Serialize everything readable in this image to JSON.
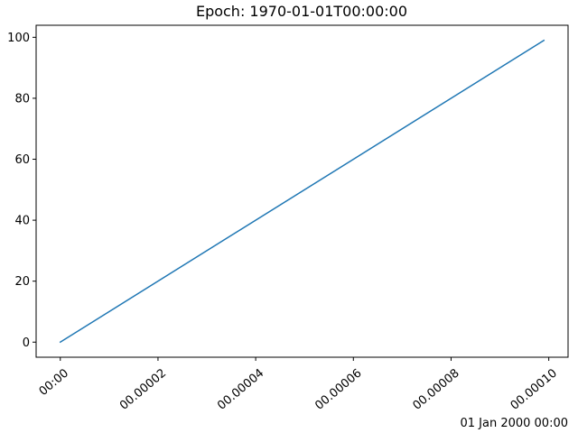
{
  "chart_data": {
    "type": "line",
    "title": "Epoch: 1970-01-01T00:00:00",
    "xlabel": "",
    "ylabel": "",
    "x_offset_label": "01 Jan 2000 00:00",
    "x": [
      0,
      9.9e-05
    ],
    "series": [
      {
        "values": [
          0,
          99
        ],
        "color": "#1f77b4"
      }
    ],
    "xlim": [
      -4.95e-06,
      0.00010395
    ],
    "ylim": [
      -4.95,
      103.95
    ],
    "xticks": [
      {
        "value": 0,
        "label": "00:00"
      },
      {
        "value": 2e-05,
        "label": "00.00002"
      },
      {
        "value": 4e-05,
        "label": "00.00004"
      },
      {
        "value": 6e-05,
        "label": "00.00006"
      },
      {
        "value": 8e-05,
        "label": "00.00008"
      },
      {
        "value": 0.0001,
        "label": "00.00010"
      }
    ],
    "yticks": [
      {
        "value": 0,
        "label": "0"
      },
      {
        "value": 20,
        "label": "20"
      },
      {
        "value": 40,
        "label": "40"
      },
      {
        "value": 60,
        "label": "60"
      },
      {
        "value": 80,
        "label": "80"
      },
      {
        "value": 100,
        "label": "100"
      }
    ],
    "grid": false,
    "legend": "none"
  }
}
